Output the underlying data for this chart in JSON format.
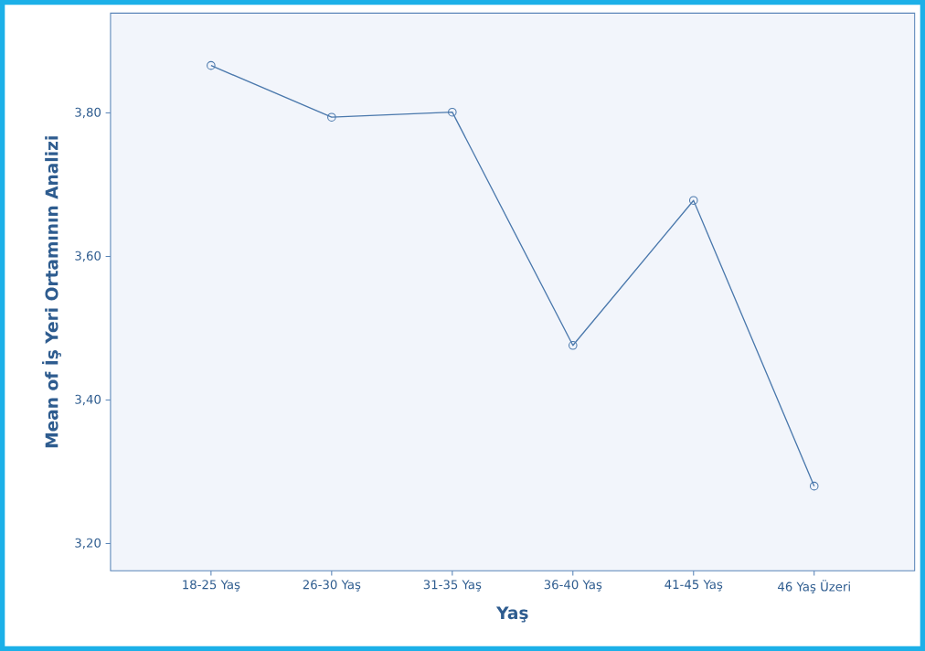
{
  "chart_data": {
    "type": "line",
    "xlabel": "Yaş",
    "ylabel": "Mean of İş Yeri Ortamının Analizi",
    "categories": [
      "18-25 Yaş",
      "26-30 Yaş",
      "31-35 Yaş",
      "36-40 Yaş",
      "41-45 Yaş",
      "46 Yaş Üzeri"
    ],
    "series": [
      {
        "color": "#4a78ac",
        "values": [
          3.866,
          3.794,
          3.801,
          3.476,
          3.678,
          3.28
        ]
      }
    ],
    "ylim": [
      3.162,
      3.939
    ],
    "yticks": [
      {
        "value": 3.2,
        "label": "3,20"
      },
      {
        "value": 3.4,
        "label": "3,40"
      },
      {
        "value": 3.6,
        "label": "3,60"
      },
      {
        "value": 3.8,
        "label": "3,80"
      }
    ],
    "marker": "circle",
    "line_style": "solid",
    "grid": false
  }
}
